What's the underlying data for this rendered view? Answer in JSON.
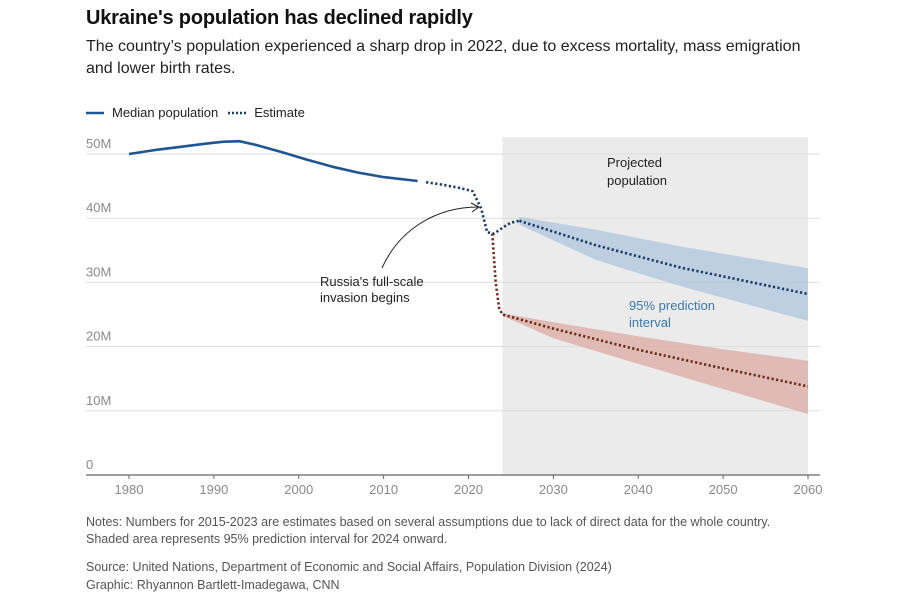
{
  "header": {
    "title": "Ukraine's population has declined rapidly",
    "subtitle": "The country’s population experienced a sharp drop in 2022, due to excess mortality, mass emigration and lower birth rates."
  },
  "legend": {
    "median_label": "Median population",
    "estimate_label": "Estimate"
  },
  "annotations": {
    "projected": [
      "Projected",
      "population"
    ],
    "invasion": [
      "Russia's full-scale",
      "invasion begins"
    ],
    "interval": [
      "95% prediction",
      "interval"
    ]
  },
  "footer": {
    "notes": "Notes: Numbers for 2015-2023 are estimates based on several assumptions due to lack of direct data for the whole country. Shaded area represents 95% prediction interval for 2024 onward.",
    "source": "Source: United Nations, Department of Economic and Social Affairs, Population Division (2024)",
    "graphic": "Graphic: Rhyannon Bartlett-Imadegawa, CNN"
  },
  "colors": {
    "blue": "#1f5591",
    "dark_blue": "#1a3a66",
    "brown": "#6b2a15",
    "blue_band": "#a9c3dc",
    "red_band": "#dca7a0",
    "projection_shade": "#ebebeb",
    "grid": "#dddddd",
    "axis_text": "#8a8a8a"
  },
  "chart_data": {
    "type": "line",
    "title": "Ukraine's population has declined rapidly",
    "xlim": [
      1977,
      2061
    ],
    "ylim": [
      0,
      52
    ],
    "x_ticks": [
      1980,
      1990,
      2000,
      2010,
      2020,
      2030,
      2040,
      2050,
      2060
    ],
    "y_ticks": [
      0,
      10,
      20,
      30,
      40,
      50
    ],
    "y_tick_labels": [
      "0",
      "10M",
      "20M",
      "30M",
      "40M",
      "50M"
    ],
    "projection_start": 2024,
    "series": [
      {
        "name": "Median population",
        "style": "solid",
        "x": [
          1980,
          1983,
          1986,
          1989,
          1991,
          1993,
          1995,
          1998,
          2001,
          2004,
          2007,
          2010,
          2014
        ],
        "y": [
          50.0,
          50.6,
          51.1,
          51.6,
          51.9,
          52.0,
          51.4,
          50.3,
          49.1,
          48.0,
          47.1,
          46.4,
          45.8
        ]
      },
      {
        "name": "Estimate",
        "style": "dotted",
        "x": [
          2015,
          2017,
          2019,
          2020.5,
          2021.5,
          2022.2,
          2023,
          2024,
          2025,
          2026
        ],
        "y": [
          45.6,
          45.2,
          44.7,
          44.2,
          41.5,
          37.8,
          37.6,
          38.5,
          39.3,
          39.6
        ]
      },
      {
        "style": "dotted",
        "x": [
          2026,
          2035,
          2045,
          2060
        ],
        "y": [
          39.6,
          35.8,
          32.3,
          28.2
        ]
      },
      {
        "style": "dotted",
        "x": [
          2022.8,
          2023.2,
          2023.6,
          2024,
          2030,
          2040,
          2050,
          2060
        ],
        "y": [
          37.6,
          30.0,
          26.0,
          25.0,
          22.8,
          19.5,
          16.6,
          13.8
        ]
      }
    ],
    "bands": [
      {
        "x": [
          2026,
          2035,
          2045,
          2060
        ],
        "upper": [
          40.2,
          38.2,
          35.6,
          32.2
        ],
        "lower": [
          39.0,
          33.5,
          29.4,
          24.0
        ]
      },
      {
        "x": [
          2024,
          2030,
          2040,
          2050,
          2060
        ],
        "upper": [
          25.2,
          23.8,
          21.6,
          19.6,
          17.8
        ],
        "lower": [
          24.8,
          21.3,
          17.3,
          13.4,
          9.5
        ]
      }
    ]
  }
}
